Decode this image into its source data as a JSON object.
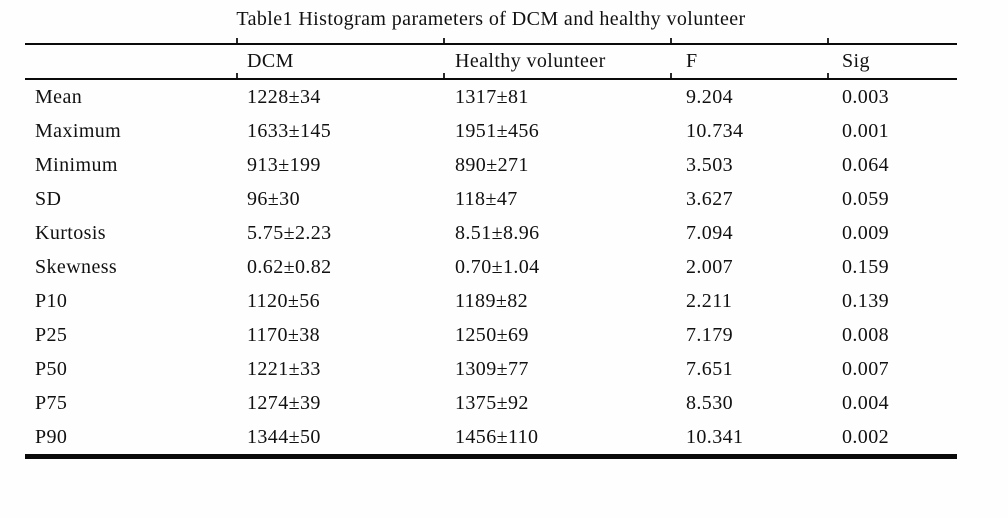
{
  "table": {
    "title": "Table1 Histogram parameters of DCM and healthy volunteer",
    "columns": [
      "",
      "DCM",
      "Healthy volunteer",
      "F",
      "Sig"
    ],
    "rows": [
      [
        "Mean",
        "1228±34",
        "1317±81",
        "9.204",
        "0.003"
      ],
      [
        "Maximum",
        "1633±145",
        "1951±456",
        "10.734",
        "0.001"
      ],
      [
        "Minimum",
        "913±199",
        "890±271",
        "3.503",
        "0.064"
      ],
      [
        "SD",
        "96±30",
        "118±47",
        "3.627",
        "0.059"
      ],
      [
        "Kurtosis",
        "5.75±2.23",
        "8.51±8.96",
        "7.094",
        "0.009"
      ],
      [
        "Skewness",
        "0.62±0.82",
        "0.70±1.04",
        "2.007",
        "0.159"
      ],
      [
        "P10",
        "1120±56",
        "1189±82",
        "2.211",
        "0.139"
      ],
      [
        "P25",
        "1170±38",
        "1250±69",
        "7.179",
        "0.008"
      ],
      [
        "P50",
        "1221±33",
        "1309±77",
        "7.651",
        "0.007"
      ],
      [
        "P75",
        "1274±39",
        "1375±92",
        "8.530",
        "0.004"
      ],
      [
        "P90",
        "1344±50",
        "1456±110",
        "10.341",
        "0.002"
      ]
    ]
  },
  "chart_data": {
    "type": "table",
    "title": "Table1 Histogram parameters of DCM and healthy volunteer",
    "columns": [
      "",
      "DCM",
      "Healthy volunteer",
      "F",
      "Sig"
    ],
    "rows": [
      [
        "Mean",
        "1228±34",
        "1317±81",
        "9.204",
        "0.003"
      ],
      [
        "Maximum",
        "1633±145",
        "1951±456",
        "10.734",
        "0.001"
      ],
      [
        "Minimum",
        "913±199",
        "890±271",
        "3.503",
        "0.064"
      ],
      [
        "SD",
        "96±30",
        "118±47",
        "3.627",
        "0.059"
      ],
      [
        "Kurtosis",
        "5.75±2.23",
        "8.51±8.96",
        "7.094",
        "0.009"
      ],
      [
        "Skewness",
        "0.62±0.82",
        "0.70±1.04",
        "2.007",
        "0.159"
      ],
      [
        "P10",
        "1120±56",
        "1189±82",
        "2.211",
        "0.139"
      ],
      [
        "P25",
        "1170±38",
        "1250±69",
        "7.179",
        "0.008"
      ],
      [
        "P50",
        "1221±33",
        "1309±77",
        "7.651",
        "0.007"
      ],
      [
        "P75",
        "1274±39",
        "1375±92",
        "8.530",
        "0.004"
      ],
      [
        "P90",
        "1344±50",
        "1456±110",
        "10.341",
        "0.002"
      ]
    ],
    "colors": {
      "text": "#111111",
      "rule": "#0a0a0a",
      "background": "#fefefe"
    }
  }
}
